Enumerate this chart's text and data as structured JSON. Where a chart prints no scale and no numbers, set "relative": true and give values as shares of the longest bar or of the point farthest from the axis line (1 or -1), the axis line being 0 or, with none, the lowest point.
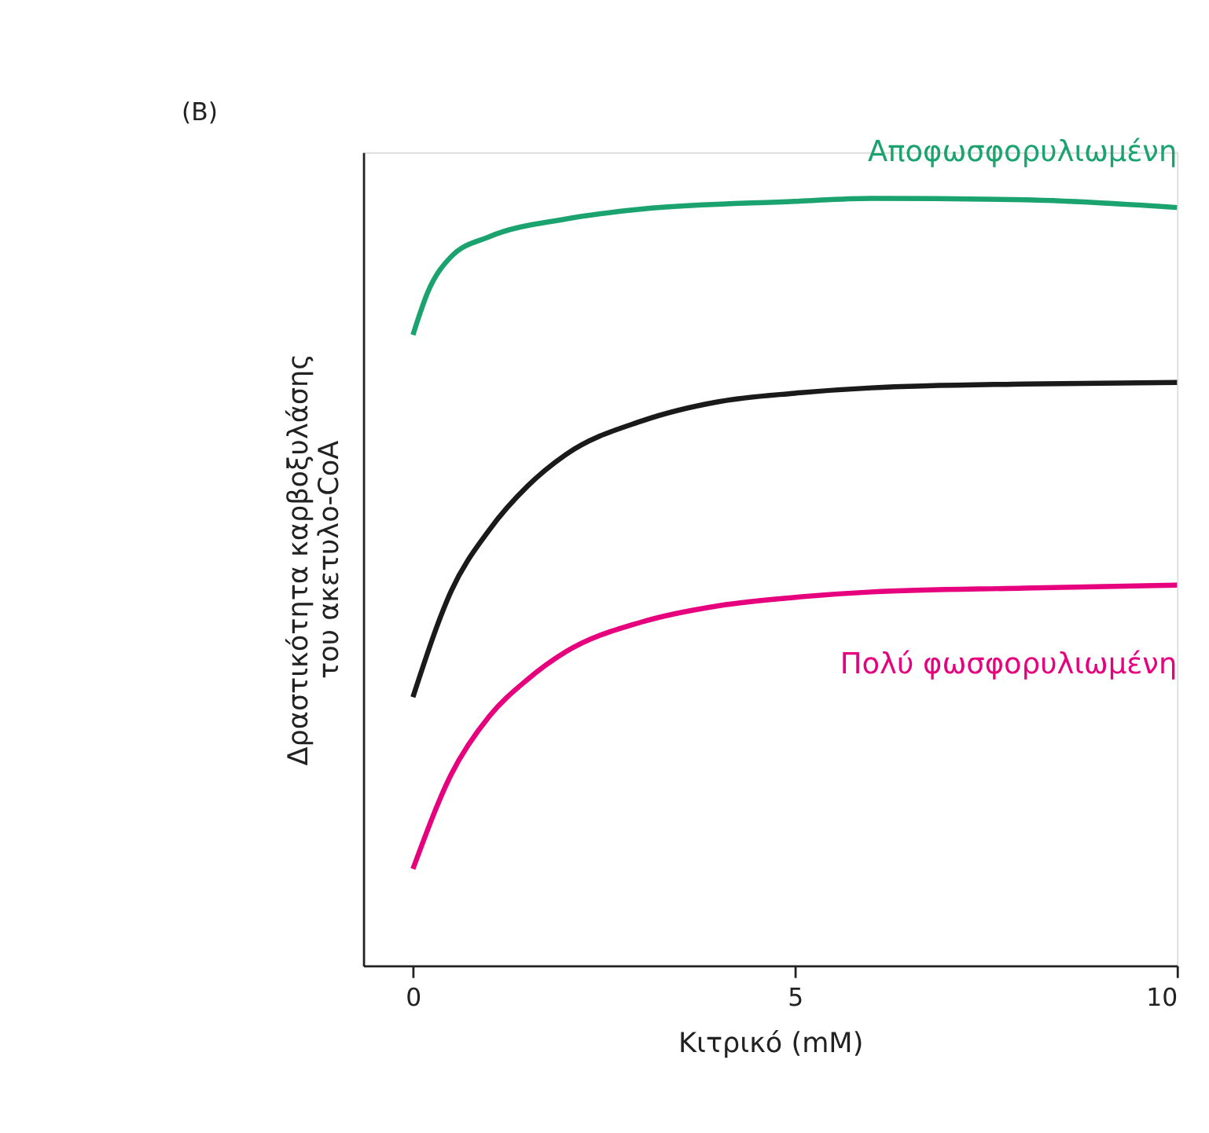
{
  "chart_data": {
    "type": "line",
    "relative": true,
    "xlabel": "Κιτρικό (mM)",
    "ylabel": "Δραστικότητα καρβοξυλάσης\nτου ακετυλο-CoA",
    "xlim": [
      -0.65,
      10
    ],
    "xticks": [
      0,
      5,
      10
    ],
    "grid": false,
    "marker": "none",
    "line_style": "solid",
    "annotations": [
      "(B)"
    ],
    "series": [
      {
        "name": "Αποφωσφορυλιωμένη",
        "color": "#1aa36f",
        "x": [
          0,
          0.2,
          0.5,
          1,
          2,
          3,
          5,
          6,
          8,
          10
        ],
        "values": [
          0.822,
          0.879,
          0.924,
          0.95,
          0.973,
          0.986,
          0.996,
          1.0,
          0.998,
          0.988
        ]
      },
      {
        "color": "#1a1a1a",
        "x": [
          0,
          0.5,
          1,
          1.5,
          2,
          3,
          4,
          5,
          6,
          8,
          10
        ],
        "values": [
          0.35,
          0.488,
          0.568,
          0.625,
          0.666,
          0.71,
          0.735,
          0.746,
          0.753,
          0.758,
          0.76
        ]
      },
      {
        "name": "Πολύ φωσφορυλιωμένη",
        "color": "#e6007e",
        "x": [
          0,
          0.5,
          1,
          1.5,
          2,
          3,
          4,
          5,
          6,
          8,
          10
        ],
        "values": [
          0.126,
          0.249,
          0.325,
          0.373,
          0.409,
          0.448,
          0.469,
          0.48,
          0.487,
          0.492,
          0.496
        ]
      }
    ]
  }
}
